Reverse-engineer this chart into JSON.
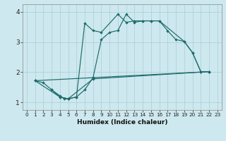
{
  "xlabel": "Humidex (Indice chaleur)",
  "bg_color": "#cde8ee",
  "grid_color": "#aacdd6",
  "line_color": "#1e6b6b",
  "xlim": [
    -0.5,
    23.5
  ],
  "ylim": [
    0.75,
    4.25
  ],
  "xticks": [
    0,
    1,
    2,
    3,
    4,
    5,
    6,
    7,
    8,
    9,
    10,
    11,
    12,
    13,
    14,
    15,
    16,
    17,
    18,
    19,
    20,
    21,
    22,
    23
  ],
  "yticks": [
    1,
    2,
    3,
    4
  ],
  "lines": [
    {
      "x": [
        1,
        2,
        3,
        4,
        4.5,
        5,
        6,
        7,
        8,
        9,
        10,
        11,
        12,
        13,
        14,
        15,
        16,
        17,
        18,
        19,
        20,
        21,
        22
      ],
      "y": [
        1.72,
        1.65,
        1.42,
        1.22,
        1.12,
        1.12,
        1.18,
        1.42,
        1.82,
        3.08,
        3.32,
        3.38,
        3.92,
        3.65,
        3.7,
        3.7,
        3.7,
        3.37,
        3.08,
        3.02,
        2.65,
        2.02,
        2.02
      ]
    },
    {
      "x": [
        3,
        4,
        5,
        6,
        7,
        8,
        9,
        11,
        12,
        13,
        14,
        15,
        16,
        19,
        20,
        21,
        22
      ],
      "y": [
        1.42,
        1.18,
        1.12,
        1.18,
        3.62,
        3.38,
        3.32,
        3.92,
        3.65,
        3.7,
        3.7,
        3.7,
        3.7,
        3.02,
        2.65,
        2.02,
        2.02
      ]
    },
    {
      "x": [
        1,
        4,
        5,
        8,
        22
      ],
      "y": [
        1.72,
        1.18,
        1.12,
        1.78,
        2.02
      ]
    },
    {
      "x": [
        1,
        22
      ],
      "y": [
        1.72,
        2.02
      ]
    }
  ]
}
